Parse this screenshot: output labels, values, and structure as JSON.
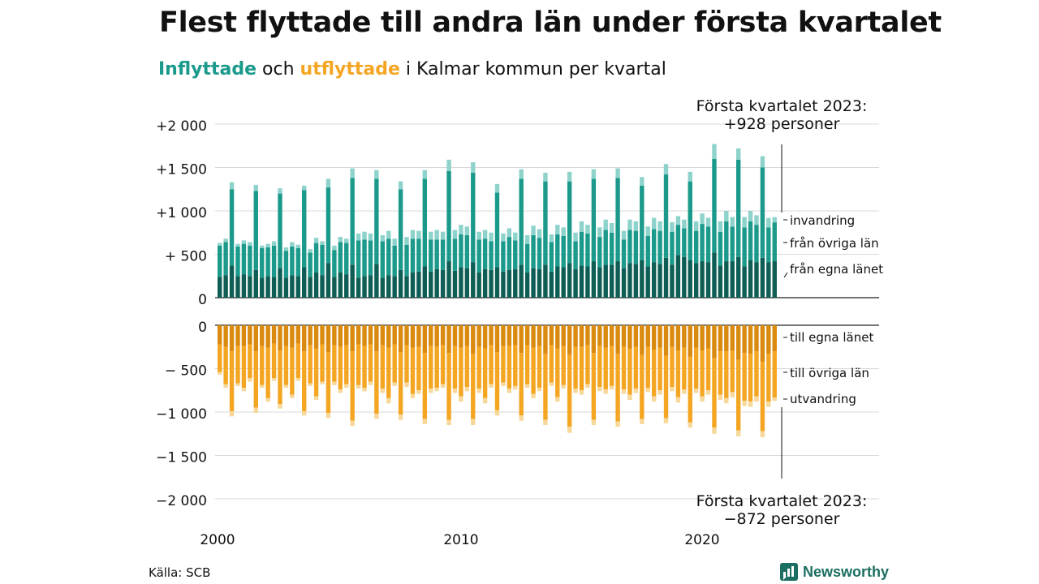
{
  "title": "Flest flyttade till andra län under första kvartalet",
  "subtitle": {
    "part1": "Inflyttade",
    "part2": " och ",
    "part3": "utflyttade",
    "part4": " i Kalmar kommun per kvartal"
  },
  "source": "Källa: SCB",
  "brand": "Newsworthy",
  "colors": {
    "in_egna": "#0e5e55",
    "in_ovriga": "#1b9a8c",
    "in_invandring": "#8ed3cb",
    "out_egna": "#d98a0f",
    "out_ovriga": "#f4a623",
    "out_utvandring": "#f7d89a"
  },
  "chart_data": {
    "type": "bar",
    "title": "Flest flyttade till andra län under första kvartalet",
    "x_start": "2000 Q1",
    "x_ticks": [
      "2000",
      "2010",
      "2020"
    ],
    "y_ticks_top": [
      "+2 000",
      "+1 500",
      "+1 000",
      "+  500",
      "0"
    ],
    "y_ticks_bottom": [
      "0",
      "−  500",
      "−1 000",
      "−1 500",
      "−2 000"
    ],
    "ylim_top": [
      0,
      2000
    ],
    "ylim_bottom": [
      -2000,
      0
    ],
    "annotation_top": [
      "Första kvartalet 2023:",
      "+928 personer"
    ],
    "annotation_bottom": [
      "Första kvartalet 2023:",
      "−872 personer"
    ],
    "series_labels_in": [
      "invandring",
      "från övriga län",
      "från egna länet"
    ],
    "series_labels_out": [
      "till egna länet",
      "till övriga län",
      "utvandring"
    ],
    "inflyttade_total": [
      630,
      680,
      1330,
      620,
      660,
      640,
      1300,
      600,
      620,
      650,
      1260,
      580,
      640,
      610,
      1290,
      560,
      690,
      650,
      1370,
      600,
      700,
      680,
      1490,
      740,
      760,
      740,
      1470,
      720,
      770,
      680,
      1340,
      700,
      780,
      770,
      1470,
      760,
      780,
      760,
      1590,
      780,
      840,
      820,
      1560,
      760,
      780,
      750,
      1310,
      740,
      800,
      750,
      1480,
      720,
      830,
      790,
      1440,
      730,
      840,
      810,
      1450,
      750,
      880,
      840,
      1480,
      810,
      900,
      860,
      1490,
      770,
      900,
      880,
      1390,
      820,
      920,
      880,
      1540,
      870,
      940,
      900,
      1450,
      880,
      970,
      920,
      1770,
      880,
      1000,
      930,
      1720,
      930,
      1000,
      950,
      1630,
      920,
      928
    ],
    "inflyttade_egna": [
      240,
      260,
      370,
      250,
      270,
      250,
      320,
      230,
      250,
      240,
      340,
      230,
      260,
      250,
      350,
      240,
      290,
      260,
      400,
      240,
      290,
      270,
      380,
      230,
      250,
      260,
      390,
      230,
      260,
      250,
      320,
      250,
      290,
      300,
      360,
      300,
      330,
      320,
      420,
      310,
      350,
      340,
      410,
      290,
      330,
      320,
      350,
      300,
      320,
      330,
      380,
      290,
      340,
      330,
      380,
      300,
      360,
      350,
      400,
      330,
      370,
      360,
      420,
      350,
      380,
      380,
      420,
      340,
      400,
      390,
      430,
      360,
      410,
      390,
      460,
      380,
      490,
      470,
      430,
      400,
      420,
      410,
      520,
      370,
      420,
      420,
      470,
      360,
      430,
      410,
      460,
      410,
      420
    ],
    "inflyttade_invandring": [
      30,
      40,
      80,
      30,
      40,
      40,
      70,
      30,
      40,
      50,
      60,
      40,
      50,
      40,
      50,
      40,
      60,
      40,
      100,
      50,
      60,
      50,
      110,
      80,
      90,
      80,
      100,
      70,
      90,
      80,
      90,
      90,
      100,
      90,
      100,
      90,
      110,
      90,
      130,
      100,
      110,
      100,
      120,
      90,
      100,
      100,
      100,
      90,
      100,
      90,
      110,
      100,
      110,
      100,
      100,
      90,
      110,
      100,
      110,
      100,
      120,
      100,
      110,
      110,
      120,
      110,
      110,
      100,
      120,
      110,
      100,
      110,
      130,
      110,
      120,
      110,
      100,
      100,
      110,
      110,
      120,
      100,
      170,
      120,
      120,
      110,
      130,
      120,
      120,
      110,
      130,
      110,
      60
    ],
    "utflyttade_total": [
      570,
      720,
      1050,
      700,
      760,
      650,
      1010,
      720,
      880,
      640,
      960,
      720,
      840,
      640,
      1040,
      700,
      860,
      680,
      1070,
      690,
      780,
      720,
      1160,
      730,
      760,
      690,
      1080,
      780,
      900,
      700,
      1090,
      710,
      840,
      790,
      1140,
      780,
      760,
      720,
      1150,
      780,
      880,
      760,
      1150,
      780,
      900,
      720,
      1040,
      700,
      780,
      740,
      1100,
      720,
      840,
      760,
      1150,
      700,
      880,
      730,
      1240,
      780,
      800,
      720,
      1150,
      760,
      790,
      740,
      1170,
      790,
      860,
      780,
      1140,
      770,
      880,
      800,
      1130,
      760,
      890,
      790,
      1180,
      780,
      880,
      800,
      1250,
      860,
      900,
      830,
      1280,
      930,
      940,
      880,
      1290,
      940,
      872
    ],
    "utflyttade_egna": [
      220,
      250,
      300,
      240,
      240,
      220,
      300,
      240,
      260,
      210,
      290,
      240,
      260,
      210,
      300,
      230,
      270,
      220,
      310,
      230,
      250,
      230,
      300,
      220,
      240,
      220,
      300,
      230,
      260,
      220,
      310,
      230,
      260,
      250,
      320,
      240,
      250,
      230,
      320,
      240,
      260,
      240,
      330,
      250,
      270,
      230,
      310,
      240,
      240,
      230,
      320,
      230,
      260,
      240,
      330,
      230,
      270,
      240,
      340,
      250,
      250,
      230,
      320,
      240,
      260,
      240,
      330,
      250,
      270,
      250,
      340,
      250,
      280,
      260,
      350,
      250,
      290,
      260,
      360,
      260,
      290,
      270,
      380,
      300,
      300,
      290,
      400,
      320,
      330,
      300,
      420,
      330,
      300
    ],
    "utflyttade_utvandring": [
      30,
      40,
      60,
      30,
      40,
      40,
      60,
      30,
      40,
      30,
      50,
      30,
      40,
      30,
      50,
      30,
      40,
      30,
      60,
      40,
      40,
      40,
      60,
      40,
      40,
      40,
      60,
      50,
      60,
      40,
      60,
      50,
      50,
      40,
      60,
      50,
      40,
      40,
      60,
      50,
      60,
      50,
      70,
      50,
      60,
      40,
      60,
      40,
      50,
      40,
      60,
      40,
      50,
      40,
      60,
      40,
      50,
      40,
      70,
      50,
      50,
      40,
      60,
      50,
      50,
      40,
      60,
      50,
      60,
      50,
      60,
      50,
      60,
      50,
      60,
      50,
      60,
      50,
      60,
      50,
      60,
      50,
      70,
      60,
      60,
      60,
      70,
      60,
      60,
      60,
      70,
      60,
      40
    ]
  }
}
